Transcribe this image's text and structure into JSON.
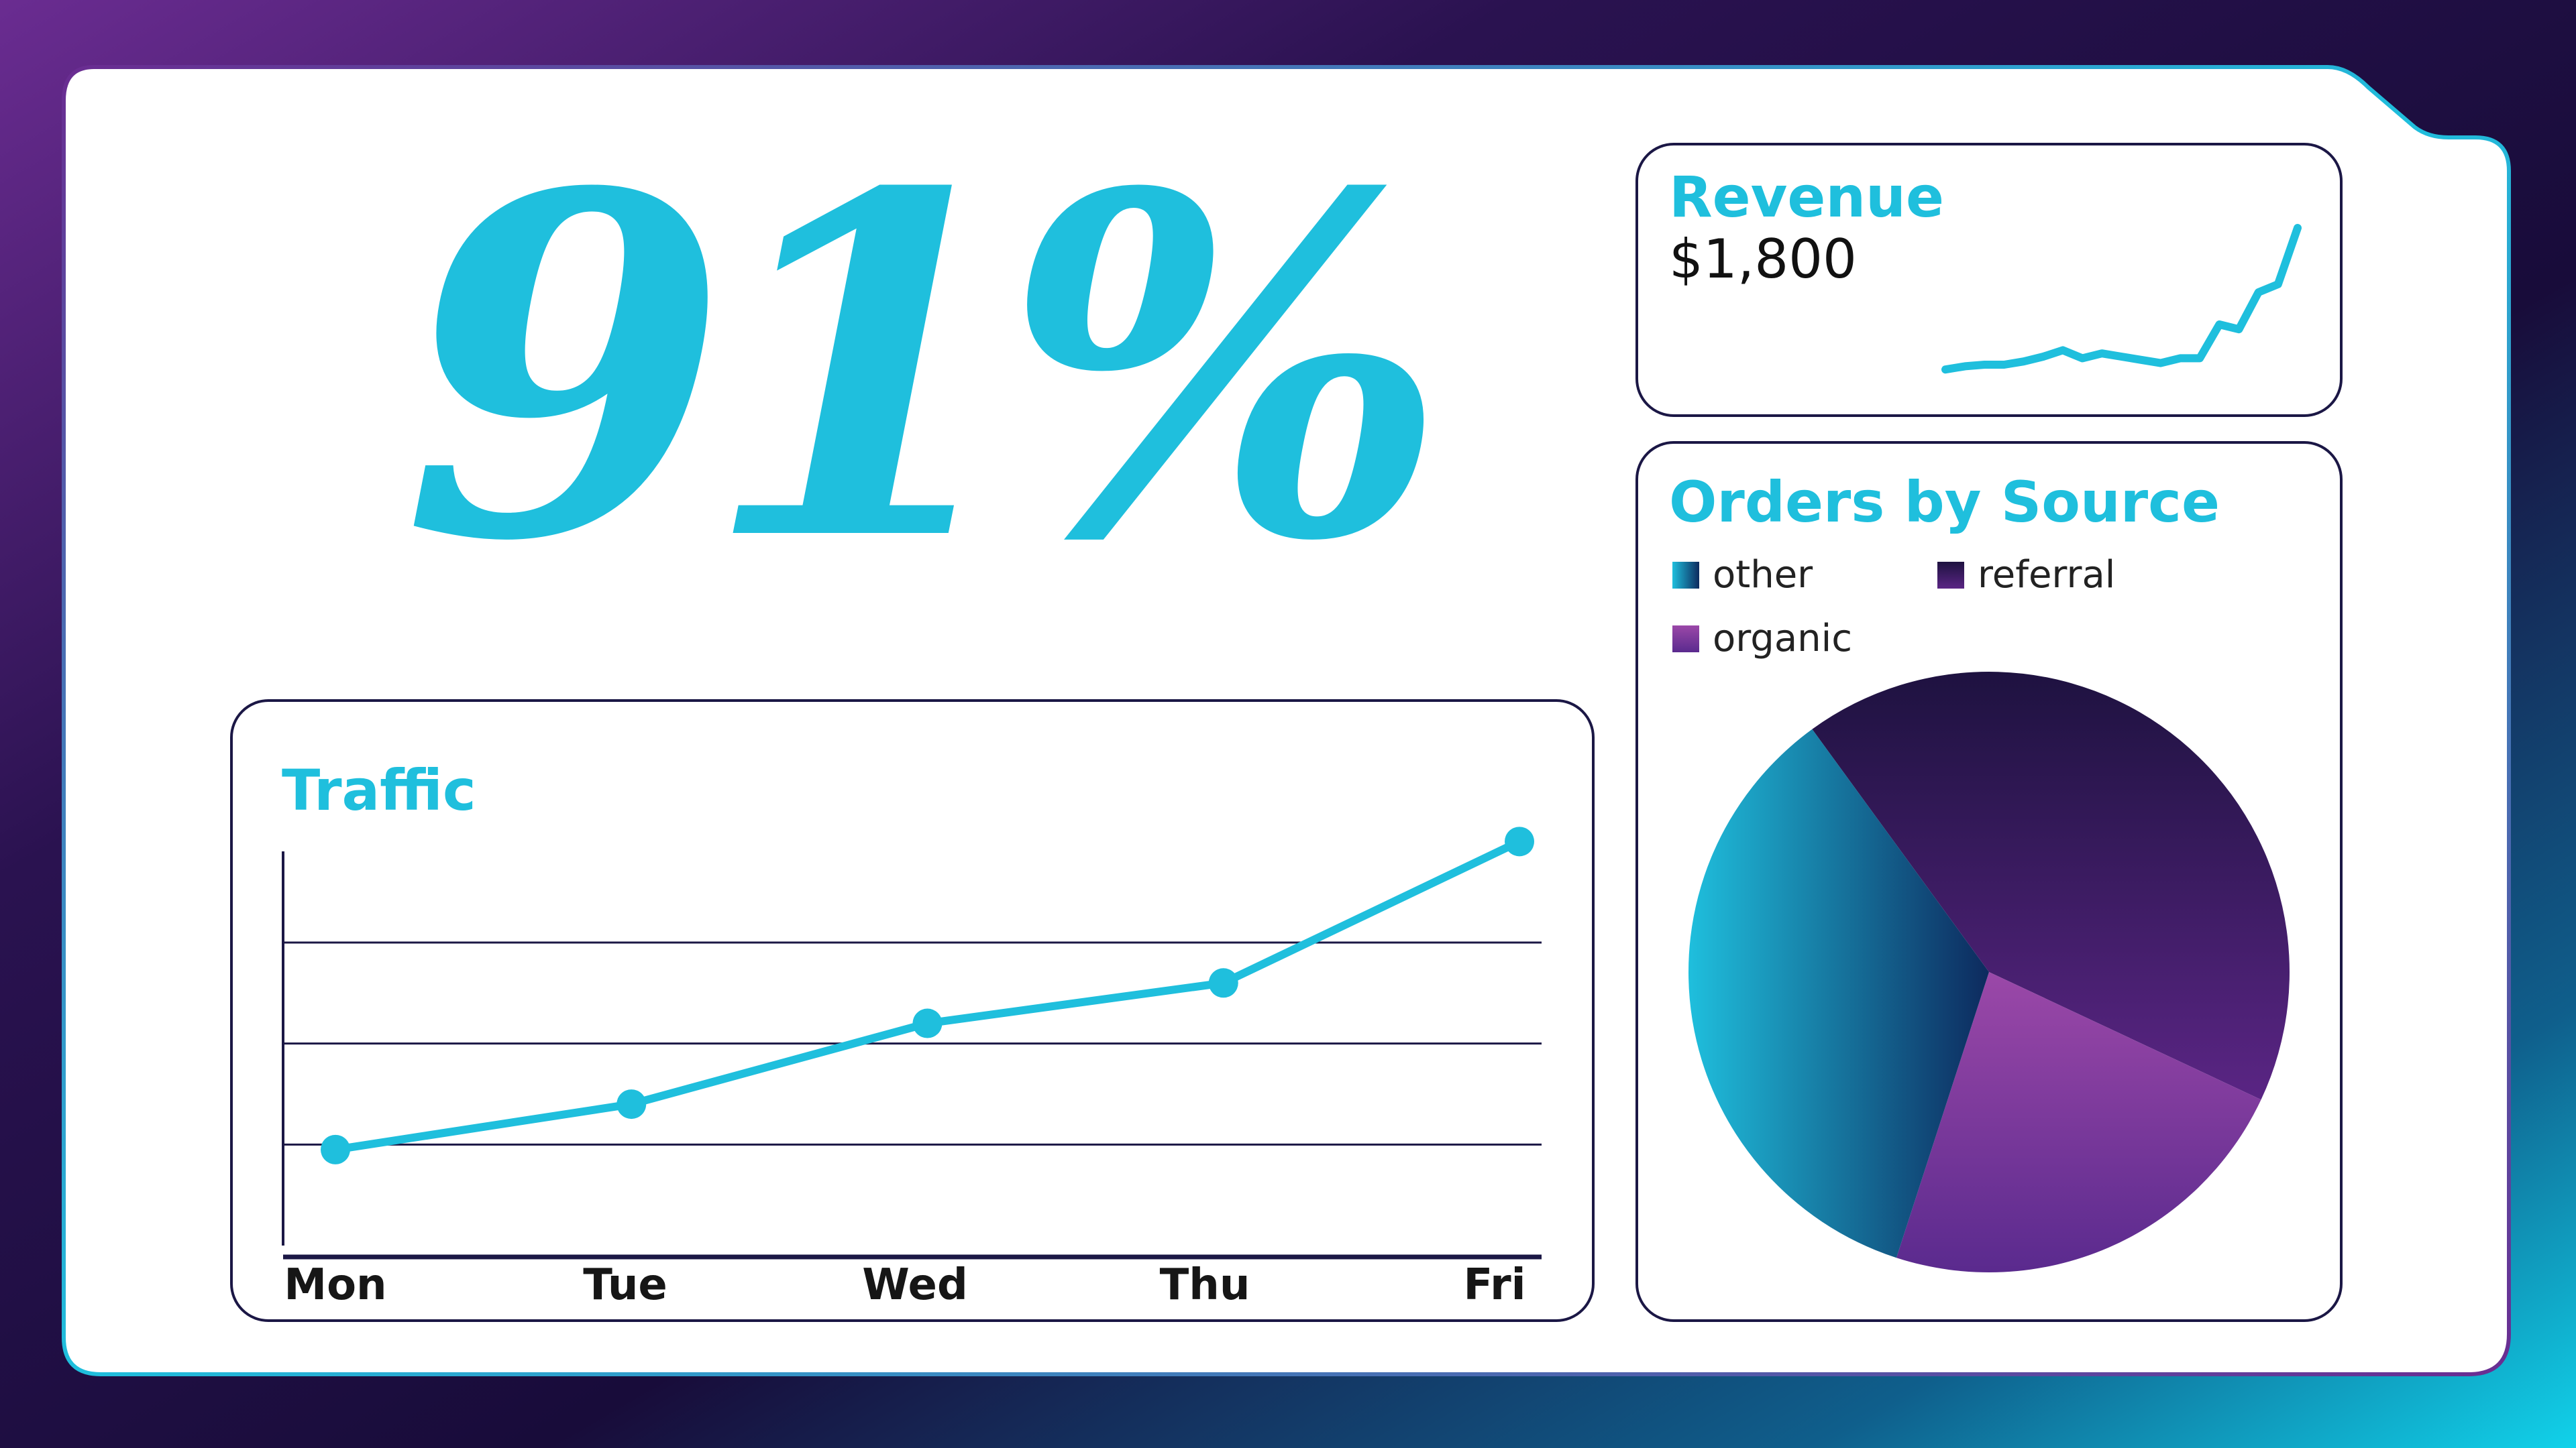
{
  "kpi": {
    "value": "91%"
  },
  "revenue": {
    "title": "Revenue",
    "value": "$1,800"
  },
  "orders": {
    "title": "Orders by Source",
    "legend": [
      {
        "label": "other",
        "color": "#1aa9c9"
      },
      {
        "label": "referral",
        "color": "#2a1450"
      },
      {
        "label": "organic",
        "color": "#8a3aa0"
      }
    ]
  },
  "traffic": {
    "title": "Traffic"
  },
  "chart_data": [
    {
      "type": "line",
      "title": "Traffic",
      "categories": [
        "Mon",
        "Tue",
        "Wed",
        "Thu",
        "Fri"
      ],
      "values": [
        0.95,
        1.4,
        2.2,
        2.6,
        4.0
      ],
      "ylim": [
        0,
        4.5
      ],
      "grid": true,
      "color": "#1fbfdd"
    },
    {
      "type": "line",
      "title": "Revenue",
      "values": [
        12,
        14,
        15,
        15,
        17,
        20,
        24,
        19,
        22,
        20,
        18,
        16,
        19,
        19,
        40,
        37,
        60,
        65,
        100
      ],
      "color": "#1fbfdd"
    },
    {
      "type": "pie",
      "title": "Orders by Source",
      "slices": [
        {
          "label": "referral",
          "value": 42
        },
        {
          "label": "organic",
          "value": 23
        },
        {
          "label": "other",
          "value": 35
        }
      ]
    }
  ],
  "colors": {
    "accent": "#1fbfdd",
    "navy": "#1b1745"
  }
}
